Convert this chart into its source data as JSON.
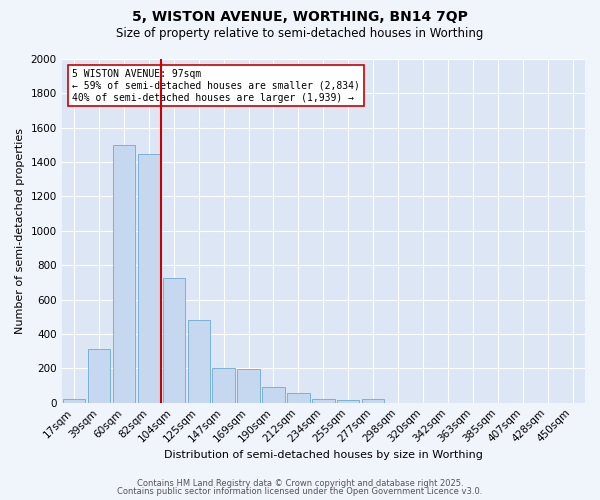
{
  "title1": "5, WISTON AVENUE, WORTHING, BN14 7QP",
  "title2": "Size of property relative to semi-detached houses in Worthing",
  "xlabel": "Distribution of semi-detached houses by size in Worthing",
  "ylabel": "Number of semi-detached properties",
  "bar_labels": [
    "17sqm",
    "39sqm",
    "60sqm",
    "82sqm",
    "104sqm",
    "125sqm",
    "147sqm",
    "169sqm",
    "190sqm",
    "212sqm",
    "234sqm",
    "255sqm",
    "277sqm",
    "298sqm",
    "320sqm",
    "342sqm",
    "363sqm",
    "385sqm",
    "407sqm",
    "428sqm",
    "450sqm"
  ],
  "bar_values": [
    20,
    310,
    1500,
    1450,
    725,
    480,
    200,
    195,
    90,
    55,
    20,
    15,
    20,
    0,
    0,
    0,
    0,
    0,
    0,
    0,
    0
  ],
  "bar_color": "#c5d8ef",
  "bar_edge_color": "#6aaad4",
  "vline_x": 3.5,
  "vline_color": "#cc0000",
  "annotation_text": "5 WISTON AVENUE: 97sqm\n← 59% of semi-detached houses are smaller (2,834)\n40% of semi-detached houses are larger (1,939) →",
  "annotation_box_color": "#ffffff",
  "annotation_box_edge": "#cc0000",
  "ylim": [
    0,
    2000
  ],
  "yticks": [
    0,
    200,
    400,
    600,
    800,
    1000,
    1200,
    1400,
    1600,
    1800,
    2000
  ],
  "background_color": "#dce6f5",
  "fig_background_color": "#f0f4fb",
  "grid_color": "#ffffff",
  "footer1": "Contains HM Land Registry data © Crown copyright and database right 2025.",
  "footer2": "Contains public sector information licensed under the Open Government Licence v3.0.",
  "title1_fontsize": 10,
  "title2_fontsize": 8.5,
  "xlabel_fontsize": 8,
  "ylabel_fontsize": 8,
  "tick_fontsize": 7.5,
  "annot_fontsize": 7,
  "footer_fontsize": 6
}
